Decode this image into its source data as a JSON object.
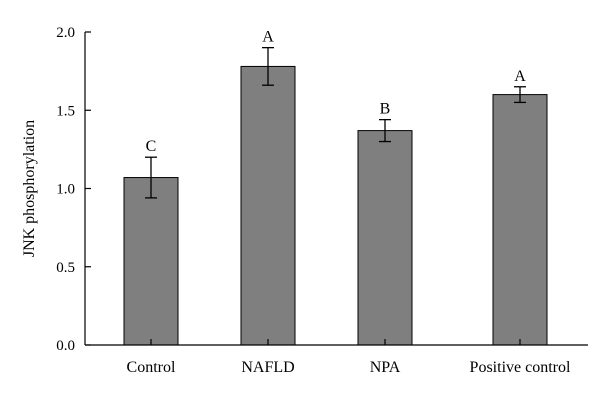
{
  "chart_data": {
    "type": "bar",
    "title": "",
    "xlabel": "",
    "ylabel": "JNK phosphorylation",
    "categories": [
      "Control",
      "NAFLD",
      "NPA",
      "Positive control"
    ],
    "values": [
      1.07,
      1.78,
      1.37,
      1.6
    ],
    "errors": [
      0.13,
      0.12,
      0.07,
      0.05
    ],
    "significance_letters": [
      "C",
      "A",
      "B",
      "A"
    ],
    "ylim": [
      0,
      2.0
    ],
    "yticks": [
      0.0,
      0.5,
      1.0,
      1.5,
      2.0
    ],
    "ytick_labels": [
      "0.0",
      "0.5",
      "1.0",
      "1.5",
      "2.0"
    ],
    "grid": false,
    "legend": "none",
    "bar_color": "#7f7f7f",
    "bar_edge_color": "#000000"
  }
}
